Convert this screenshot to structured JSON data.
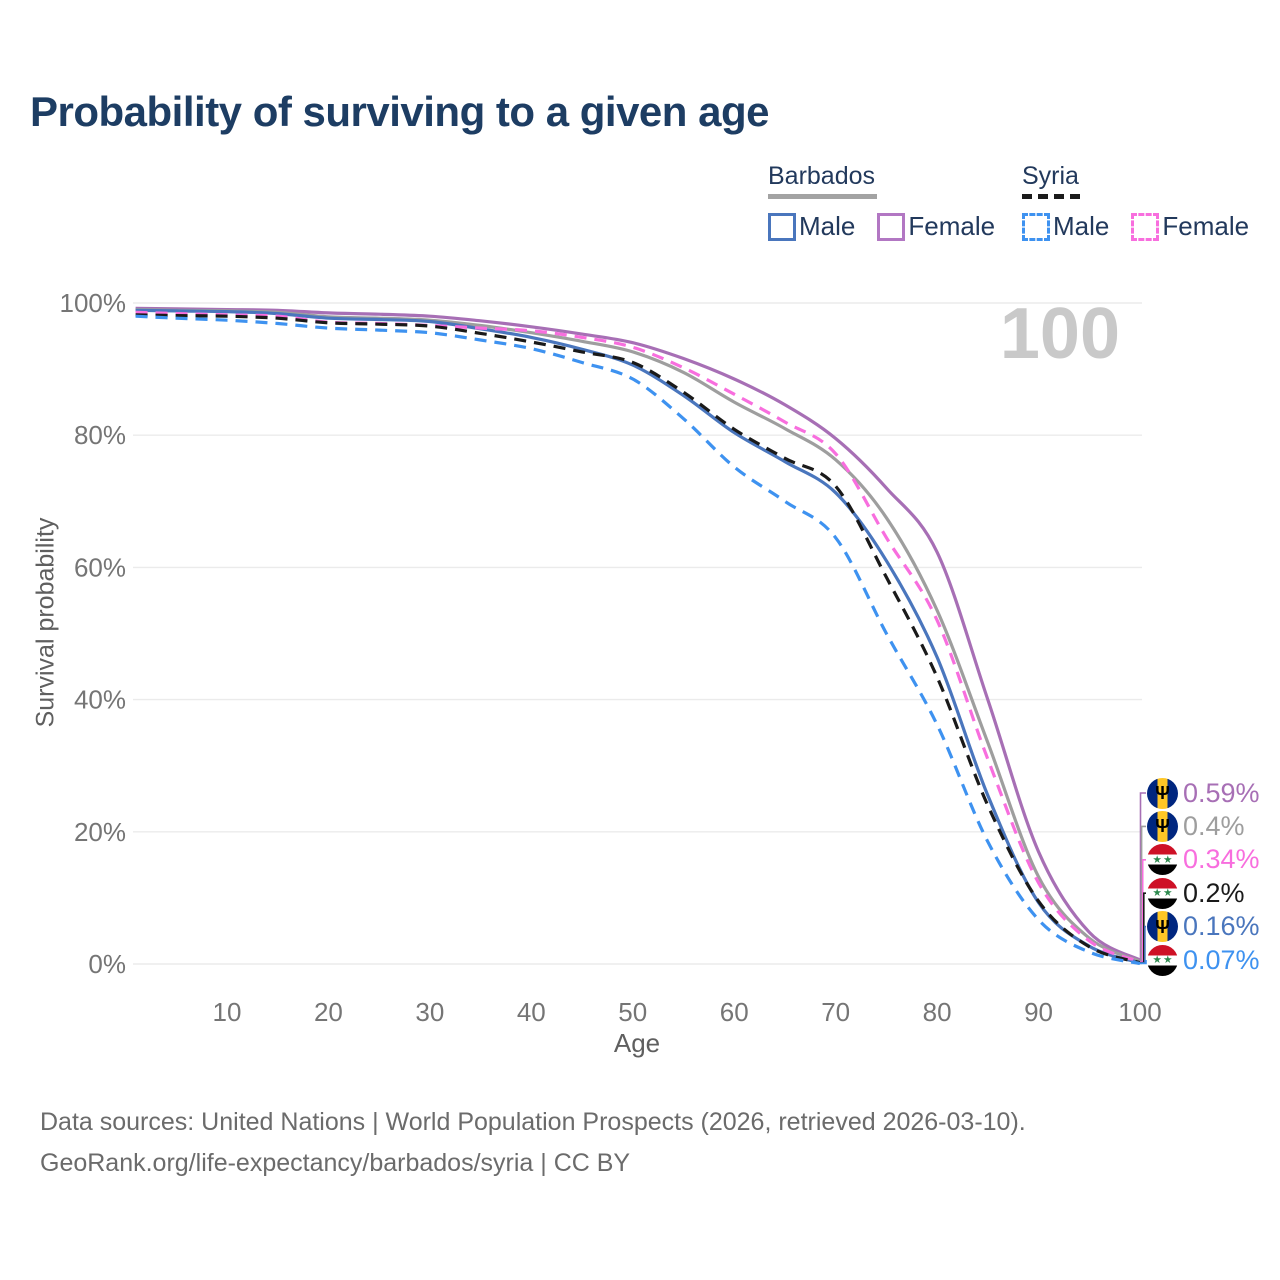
{
  "chart_data": {
    "type": "line",
    "title": "Probability of surviving to a given age",
    "xlabel": "Age",
    "ylabel": "Survival probability",
    "watermark_age_label": "100",
    "x_ticks": [
      10,
      20,
      30,
      40,
      50,
      60,
      70,
      80,
      90,
      100
    ],
    "y_ticks": [
      0,
      20,
      40,
      60,
      80,
      100
    ],
    "y_tick_suffix": "%",
    "xlim": [
      0,
      100
    ],
    "ylim": [
      0,
      100
    ],
    "grid": "horizontal",
    "legend_position": "top-right",
    "ages": [
      0,
      5,
      10,
      15,
      20,
      25,
      30,
      35,
      40,
      45,
      50,
      55,
      60,
      65,
      70,
      75,
      80,
      85,
      90,
      95,
      100
    ],
    "series": [
      {
        "name": "Barbados Female",
        "country": "Barbados",
        "sex": "Female",
        "style": "solid",
        "color": "#a76fb5",
        "end_label": "0.59%",
        "values": [
          99.2,
          99.1,
          99.0,
          98.9,
          98.5,
          98.3,
          98.0,
          97.3,
          96.4,
          95.3,
          94.0,
          91.6,
          88.5,
          84.6,
          79.5,
          72.0,
          62.3,
          40.0,
          17.0,
          4.8,
          0.59
        ]
      },
      {
        "name": "Barbados",
        "country": "Barbados",
        "sex": "Both",
        "style": "solid",
        "color": "#9e9e9e",
        "end_label": "0.4%",
        "values": [
          99.0,
          98.9,
          98.8,
          98.6,
          97.9,
          97.7,
          97.4,
          96.6,
          95.5,
          94.2,
          92.6,
          89.5,
          85.0,
          81.0,
          76.3,
          67.5,
          53.5,
          33.5,
          13.2,
          3.9,
          0.4
        ]
      },
      {
        "name": "Syria Female",
        "country": "Syria",
        "sex": "Female",
        "style": "dashed",
        "color": "#f86ede",
        "end_label": "0.34%",
        "values": [
          98.6,
          98.4,
          98.2,
          98.0,
          97.1,
          96.9,
          96.6,
          96.2,
          95.8,
          94.8,
          93.3,
          90.2,
          86.2,
          82.0,
          77.2,
          64.5,
          52.0,
          31.0,
          12.3,
          3.5,
          0.34
        ]
      },
      {
        "name": "Syria",
        "country": "Syria",
        "sex": "Both",
        "style": "dashed",
        "color": "#1a1a1a",
        "end_label": "0.2%",
        "values": [
          98.2,
          98.1,
          98.0,
          97.7,
          97.0,
          96.8,
          96.5,
          95.4,
          94.1,
          92.6,
          91.0,
          86.5,
          80.9,
          76.5,
          72.3,
          58.5,
          43.4,
          24.0,
          9.5,
          2.6,
          0.2
        ]
      },
      {
        "name": "Barbados Male",
        "country": "Barbados",
        "sex": "Male",
        "style": "solid",
        "color": "#4a76bd",
        "end_label": "0.16%",
        "values": [
          98.9,
          98.8,
          98.7,
          98.4,
          97.7,
          97.5,
          97.2,
          96.1,
          94.8,
          93.0,
          90.6,
          86.0,
          80.4,
          76.0,
          71.3,
          61.0,
          46.4,
          25.5,
          9.3,
          2.7,
          0.16
        ]
      },
      {
        "name": "Syria Male",
        "country": "Syria",
        "sex": "Male",
        "style": "dashed",
        "color": "#3e92f0",
        "end_label": "0.07%",
        "values": [
          98.0,
          97.7,
          97.4,
          96.9,
          96.2,
          95.9,
          95.5,
          94.4,
          93.1,
          91.0,
          88.5,
          82.5,
          75.2,
          70.0,
          64.5,
          50.0,
          36.2,
          18.5,
          6.7,
          1.8,
          0.07
        ]
      }
    ]
  },
  "legend": {
    "groups": [
      {
        "title": "Barbados",
        "underline": "solid",
        "items": [
          {
            "label": "Male",
            "color": "#4a76bd",
            "dash": "solid"
          },
          {
            "label": "Female",
            "color": "#b277c3",
            "dash": "solid"
          }
        ]
      },
      {
        "title": "Syria",
        "underline": "dashed",
        "items": [
          {
            "label": "Male",
            "color": "#3e92f0",
            "dash": "dashed"
          },
          {
            "label": "Female",
            "color": "#f86ede",
            "dash": "dashed"
          }
        ]
      }
    ]
  },
  "flags": {
    "Barbados": {
      "bands": "vertical",
      "colors": [
        "#00267f",
        "#ffc726",
        "#00267f"
      ],
      "emblem": "trident",
      "emblem_color": "#000000"
    },
    "Syria": {
      "bands": "horizontal",
      "colors": [
        "#ce1126",
        "#ffffff",
        "#000000"
      ],
      "stars": 2,
      "star_color": "#2d8a4e"
    }
  },
  "axis_colors": {
    "tick": "#757575",
    "grid": "#ebebeb"
  },
  "footer": {
    "line1": "Data sources: United Nations | World Population Prospects (2026, retrieved 2026-03-10).",
    "line2": "GeoRank.org/life-expectancy/barbados/syria | CC BY"
  }
}
